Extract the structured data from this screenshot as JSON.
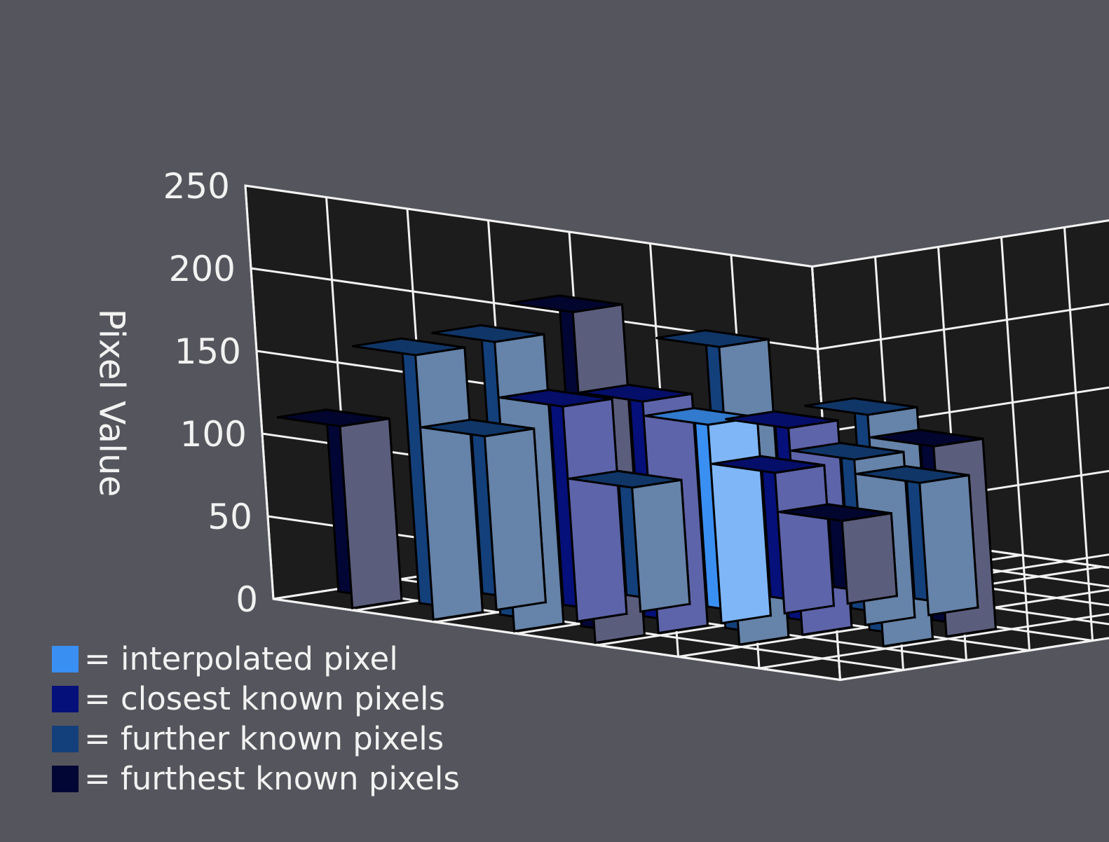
{
  "chart_data": {
    "type": "bar3d",
    "title": "",
    "ylabel": "Pixel Value",
    "zlim": [
      0,
      250
    ],
    "z_ticks": [
      0,
      50,
      100,
      150,
      200,
      250
    ],
    "z_tick_labels": [
      "0",
      "50",
      "100",
      "150",
      "200",
      "250"
    ],
    "grid": true,
    "legend_position": "bottom-left",
    "legend": [
      {
        "category": "interpolated",
        "label": "= interpolated pixel",
        "color": "#3a8ff2"
      },
      {
        "category": "closest",
        "label": "= closest known pixels",
        "color": "#06107a"
      },
      {
        "category": "further",
        "label": "= further known pixels",
        "color": "#13407a"
      },
      {
        "category": "furthest",
        "label": "= furthest known pixels",
        "color": "#020635"
      }
    ],
    "bars": [
      {
        "col": 0,
        "row": 0,
        "value": 110,
        "category": "furthest"
      },
      {
        "col": 1,
        "row": 0,
        "value": 160,
        "category": "further"
      },
      {
        "col": 2,
        "row": 0,
        "value": 175,
        "category": "further"
      },
      {
        "col": 3,
        "row": 0,
        "value": 200,
        "category": "furthest"
      },
      {
        "col": 1,
        "row": 1,
        "value": 105,
        "category": "further"
      },
      {
        "col": 2,
        "row": 1,
        "value": 130,
        "category": "closest"
      },
      {
        "col": 3,
        "row": 1,
        "value": 140,
        "category": "closest"
      },
      {
        "col": 4,
        "row": 1,
        "value": 180,
        "category": "further"
      },
      {
        "col": 2,
        "row": 2,
        "value": 75,
        "category": "further"
      },
      {
        "col": 3,
        "row": 2,
        "value": 120,
        "category": "interpolated"
      },
      {
        "col": 4,
        "row": 2,
        "value": 125,
        "category": "closest"
      },
      {
        "col": 5,
        "row": 2,
        "value": 140,
        "category": "further"
      },
      {
        "col": 3,
        "row": 3,
        "value": 85,
        "category": "closest"
      },
      {
        "col": 4,
        "row": 3,
        "value": 100,
        "category": "further"
      },
      {
        "col": 5,
        "row": 3,
        "value": 115,
        "category": "furthest"
      },
      {
        "col": 3,
        "row": 4,
        "value": 50,
        "category": "furthest"
      },
      {
        "col": 4,
        "row": 4,
        "value": 80,
        "category": "further"
      }
    ]
  }
}
